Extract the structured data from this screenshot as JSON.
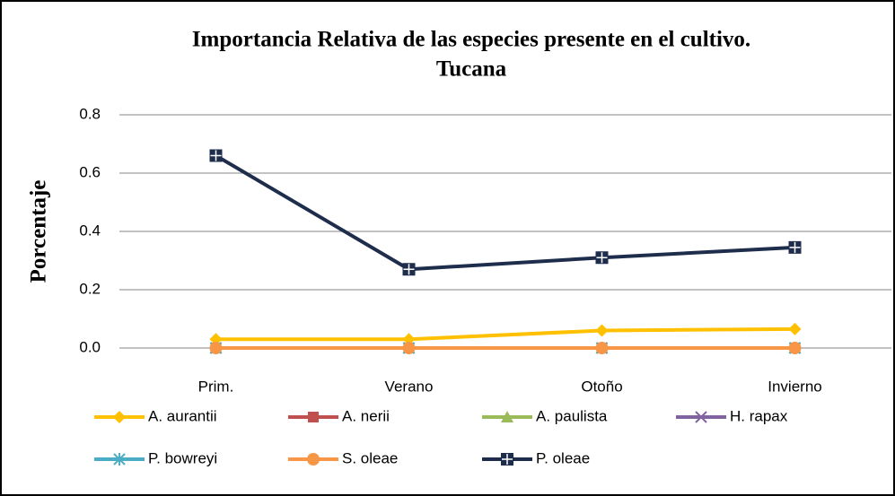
{
  "chart_data": {
    "type": "line",
    "title": [
      "Importancia Relativa de las especies  presente en el cultivo.",
      "Tucana"
    ],
    "y_label": "Porcentaje",
    "categories": [
      "Prim.",
      "Verano",
      "Otoño",
      "Invierno"
    ],
    "ylim": [
      0,
      0.8
    ],
    "yticks": [
      {
        "value": 0,
        "label": "0.0"
      },
      0.2,
      0.4,
      0.6,
      0.8
    ],
    "grid": true,
    "legend": "bottom",
    "series": [
      {
        "name": "A. aurantii",
        "color": "#FFC000",
        "marker": "diamond",
        "values": [
          0.03,
          0.03,
          0.06,
          0.065
        ]
      },
      {
        "name": "A. nerii",
        "color": "#C0504D",
        "marker": "square",
        "values": [
          0,
          0,
          0,
          0
        ]
      },
      {
        "name": "A. paulista",
        "color": "#9BBB59",
        "marker": "triangle",
        "values": [
          0,
          0,
          0,
          0
        ]
      },
      {
        "name": "H. rapax",
        "color": "#8064A2",
        "marker": "x",
        "values": [
          0,
          0,
          0,
          0
        ]
      },
      {
        "name": "P. bowreyi",
        "color": "#4BACC6",
        "marker": "asterisk",
        "values": [
          0,
          0,
          0,
          0
        ]
      },
      {
        "name": "S. oleae",
        "color": "#F79646",
        "marker": "circle",
        "values": [
          0,
          0,
          0,
          0
        ]
      },
      {
        "name": "P. oleae",
        "color": "#1F2D4D",
        "marker": "plus-square",
        "values": [
          0.66,
          0.27,
          0.31,
          0.345
        ]
      }
    ]
  }
}
